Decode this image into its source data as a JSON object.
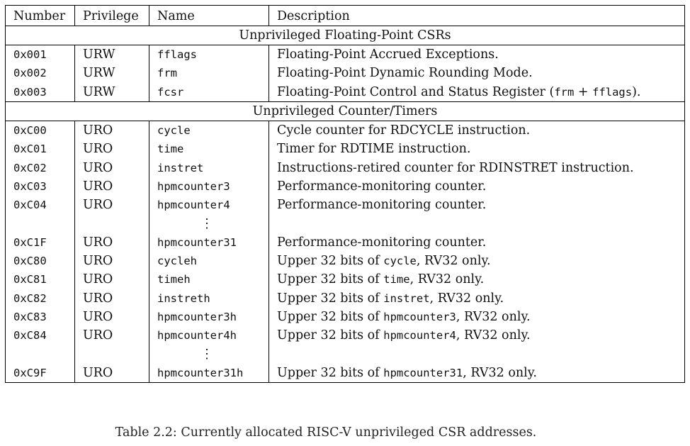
{
  "headers": [
    "Number",
    "Privilege",
    "Name",
    "Description"
  ],
  "sections": [
    {
      "title": "Unprivileged Floating-Point CSRs",
      "rows": [
        {
          "number": "0x001",
          "privilege": "URW",
          "name": "fflags",
          "desc": [
            {
              "t": "Floating-Point Accrued Exceptions."
            }
          ]
        },
        {
          "number": "0x002",
          "privilege": "URW",
          "name": "frm",
          "desc": [
            {
              "t": "Floating-Point Dynamic Rounding Mode."
            }
          ]
        },
        {
          "number": "0x003",
          "privilege": "URW",
          "name": "fcsr",
          "desc": [
            {
              "t": "Floating-Point Control and Status Register ("
            },
            {
              "t": "frm",
              "code": true
            },
            {
              "t": " + "
            },
            {
              "t": "fflags",
              "code": true
            },
            {
              "t": ")."
            }
          ]
        }
      ]
    },
    {
      "title": "Unprivileged Counter/Timers",
      "rows": [
        {
          "number": "0xC00",
          "privilege": "URO",
          "name": "cycle",
          "desc": [
            {
              "t": "Cycle counter for RDCYCLE instruction."
            }
          ]
        },
        {
          "number": "0xC01",
          "privilege": "URO",
          "name": "time",
          "desc": [
            {
              "t": "Timer for RDTIME instruction."
            }
          ]
        },
        {
          "number": "0xC02",
          "privilege": "URO",
          "name": "instret",
          "desc": [
            {
              "t": "Instructions-retired counter for RDINSTRET instruction."
            }
          ]
        },
        {
          "number": "0xC03",
          "privilege": "URO",
          "name": "hpmcounter3",
          "desc": [
            {
              "t": "Performance-monitoring counter."
            }
          ]
        },
        {
          "number": "0xC04",
          "privilege": "URO",
          "name": "hpmcounter4",
          "desc": [
            {
              "t": "Performance-monitoring counter."
            }
          ]
        },
        {
          "ellipsis": true,
          "symbol": "⋮"
        },
        {
          "number": "0xC1F",
          "privilege": "URO",
          "name": "hpmcounter31",
          "desc": [
            {
              "t": "Performance-monitoring counter."
            }
          ]
        },
        {
          "number": "0xC80",
          "privilege": "URO",
          "name": "cycleh",
          "desc": [
            {
              "t": "Upper 32 bits of "
            },
            {
              "t": "cycle",
              "code": true
            },
            {
              "t": ", RV32 only."
            }
          ]
        },
        {
          "number": "0xC81",
          "privilege": "URO",
          "name": "timeh",
          "desc": [
            {
              "t": "Upper 32 bits of "
            },
            {
              "t": "time",
              "code": true
            },
            {
              "t": ", RV32 only."
            }
          ]
        },
        {
          "number": "0xC82",
          "privilege": "URO",
          "name": "instreth",
          "desc": [
            {
              "t": "Upper 32 bits of "
            },
            {
              "t": "instret",
              "code": true
            },
            {
              "t": ", RV32 only."
            }
          ]
        },
        {
          "number": "0xC83",
          "privilege": "URO",
          "name": "hpmcounter3h",
          "desc": [
            {
              "t": "Upper 32 bits of "
            },
            {
              "t": "hpmcounter3",
              "code": true
            },
            {
              "t": ", RV32 only."
            }
          ]
        },
        {
          "number": "0xC84",
          "privilege": "URO",
          "name": "hpmcounter4h",
          "desc": [
            {
              "t": "Upper 32 bits of "
            },
            {
              "t": "hpmcounter4",
              "code": true
            },
            {
              "t": ", RV32 only."
            }
          ]
        },
        {
          "ellipsis": true,
          "symbol": "⋮"
        },
        {
          "number": "0xC9F",
          "privilege": "URO",
          "name": "hpmcounter31h",
          "desc": [
            {
              "t": "Upper 32 bits of "
            },
            {
              "t": "hpmcounter31",
              "code": true
            },
            {
              "t": ", RV32 only."
            }
          ]
        }
      ]
    }
  ],
  "caption": "Table 2.2: Currently allocated RISC-V unprivileged CSR addresses."
}
